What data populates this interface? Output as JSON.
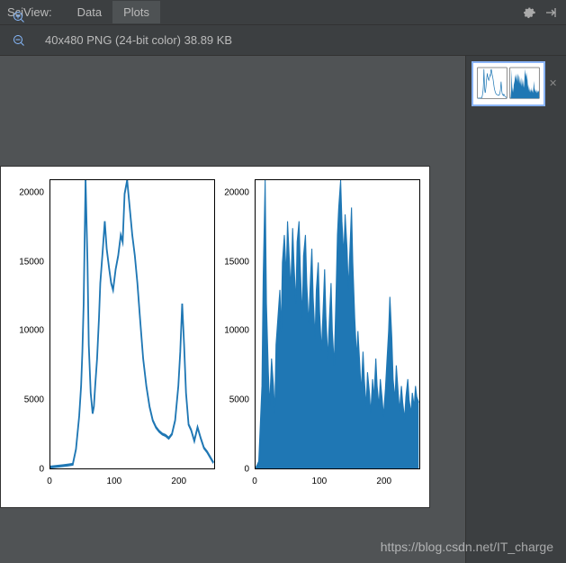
{
  "header": {
    "title": "SciView:",
    "tabs": [
      {
        "label": "Data",
        "active": false
      },
      {
        "label": "Plots",
        "active": true
      }
    ]
  },
  "toolbar": {
    "info": "40x480 PNG (24-bit color) 38.89 KB",
    "buttons": [
      {
        "name": "fit-window-icon",
        "selected": true
      },
      {
        "name": "actual-size-icon",
        "selected": false
      },
      {
        "name": "zoom-in-icon",
        "selected": false
      },
      {
        "name": "zoom-out-icon",
        "selected": false
      },
      {
        "name": "zoom-reset-icon",
        "selected": false
      },
      {
        "name": "grid-icon",
        "selected": false
      },
      {
        "name": "color-picker-icon",
        "selected": false
      }
    ]
  },
  "watermark": "https://blog.csdn.net/IT_charge",
  "chart": {
    "type": "line-subplots",
    "background_color": "#ffffff",
    "line_color": "#1f77b4",
    "fill_color": "#1f77b4",
    "axis_color": "#000000",
    "tick_fontsize": 10,
    "ylim": [
      0,
      21000
    ],
    "yticks": [
      0,
      5000,
      10000,
      15000,
      20000
    ],
    "xlim": [
      0,
      256
    ],
    "xticks": [
      0,
      100,
      200
    ],
    "left": {
      "style": "line",
      "data": [
        [
          0,
          100
        ],
        [
          10,
          150
        ],
        [
          20,
          200
        ],
        [
          28,
          250
        ],
        [
          35,
          300
        ],
        [
          40,
          1400
        ],
        [
          45,
          3800
        ],
        [
          48,
          6000
        ],
        [
          50,
          8500
        ],
        [
          52,
          12000
        ],
        [
          55,
          21000
        ],
        [
          58,
          15000
        ],
        [
          60,
          9000
        ],
        [
          63,
          5500
        ],
        [
          66,
          4000
        ],
        [
          68,
          4500
        ],
        [
          70,
          6000
        ],
        [
          73,
          8000
        ],
        [
          76,
          11000
        ],
        [
          78,
          13500
        ],
        [
          82,
          16000
        ],
        [
          85,
          18000
        ],
        [
          88,
          16000
        ],
        [
          92,
          14500
        ],
        [
          95,
          13500
        ],
        [
          98,
          13000
        ],
        [
          102,
          14500
        ],
        [
          106,
          15500
        ],
        [
          110,
          17000
        ],
        [
          113,
          16500
        ],
        [
          116,
          20000
        ],
        [
          120,
          21000
        ],
        [
          124,
          19000
        ],
        [
          128,
          17000
        ],
        [
          132,
          15500
        ],
        [
          136,
          13500
        ],
        [
          140,
          11000
        ],
        [
          145,
          8000
        ],
        [
          150,
          6000
        ],
        [
          155,
          4500
        ],
        [
          160,
          3500
        ],
        [
          165,
          3000
        ],
        [
          170,
          2700
        ],
        [
          175,
          2500
        ],
        [
          180,
          2400
        ],
        [
          185,
          2200
        ],
        [
          190,
          2500
        ],
        [
          195,
          3500
        ],
        [
          200,
          6000
        ],
        [
          203,
          8500
        ],
        [
          206,
          12000
        ],
        [
          209,
          9000
        ],
        [
          212,
          5500
        ],
        [
          216,
          3200
        ],
        [
          220,
          2800
        ],
        [
          225,
          2000
        ],
        [
          230,
          3000
        ],
        [
          235,
          2200
        ],
        [
          240,
          1500
        ],
        [
          245,
          1200
        ],
        [
          250,
          800
        ],
        [
          255,
          400
        ]
      ]
    },
    "right": {
      "style": "dense-fill",
      "data": [
        [
          0,
          0
        ],
        [
          5,
          500
        ],
        [
          10,
          6000
        ],
        [
          12,
          14000
        ],
        [
          15,
          21000
        ],
        [
          17,
          12000
        ],
        [
          20,
          7000
        ],
        [
          22,
          4500
        ],
        [
          25,
          8000
        ],
        [
          28,
          6000
        ],
        [
          30,
          4000
        ],
        [
          32,
          9000
        ],
        [
          35,
          11000
        ],
        [
          38,
          13000
        ],
        [
          40,
          10000
        ],
        [
          42,
          15000
        ],
        [
          45,
          17000
        ],
        [
          48,
          14000
        ],
        [
          50,
          18000
        ],
        [
          52,
          16000
        ],
        [
          55,
          13000
        ],
        [
          58,
          17500
        ],
        [
          60,
          15000
        ],
        [
          63,
          12000
        ],
        [
          65,
          16500
        ],
        [
          68,
          18000
        ],
        [
          70,
          14500
        ],
        [
          73,
          11000
        ],
        [
          75,
          15500
        ],
        [
          78,
          17000
        ],
        [
          80,
          13500
        ],
        [
          83,
          10500
        ],
        [
          86,
          14000
        ],
        [
          88,
          16000
        ],
        [
          90,
          12500
        ],
        [
          93,
          9500
        ],
        [
          95,
          13000
        ],
        [
          98,
          15000
        ],
        [
          100,
          11500
        ],
        [
          103,
          8500
        ],
        [
          106,
          12000
        ],
        [
          108,
          14500
        ],
        [
          110,
          11000
        ],
        [
          113,
          8000
        ],
        [
          116,
          11500
        ],
        [
          118,
          13500
        ],
        [
          120,
          10000
        ],
        [
          123,
          7500
        ],
        [
          126,
          13000
        ],
        [
          128,
          17000
        ],
        [
          130,
          19000
        ],
        [
          133,
          21000
        ],
        [
          135,
          18000
        ],
        [
          138,
          15500
        ],
        [
          140,
          18500
        ],
        [
          143,
          16000
        ],
        [
          145,
          13000
        ],
        [
          148,
          16500
        ],
        [
          150,
          19000
        ],
        [
          152,
          15000
        ],
        [
          155,
          11000
        ],
        [
          158,
          8000
        ],
        [
          160,
          10000
        ],
        [
          163,
          7500
        ],
        [
          165,
          5500
        ],
        [
          168,
          8500
        ],
        [
          170,
          6500
        ],
        [
          173,
          4500
        ],
        [
          175,
          7000
        ],
        [
          178,
          5500
        ],
        [
          180,
          4000
        ],
        [
          183,
          6500
        ],
        [
          185,
          5000
        ],
        [
          188,
          8000
        ],
        [
          190,
          6000
        ],
        [
          193,
          4500
        ],
        [
          195,
          6500
        ],
        [
          198,
          5000
        ],
        [
          200,
          3800
        ],
        [
          203,
          5800
        ],
        [
          205,
          7500
        ],
        [
          208,
          10000
        ],
        [
          210,
          12500
        ],
        [
          213,
          9500
        ],
        [
          215,
          6500
        ],
        [
          218,
          5000
        ],
        [
          220,
          7500
        ],
        [
          223,
          5500
        ],
        [
          225,
          4200
        ],
        [
          228,
          6000
        ],
        [
          230,
          4800
        ],
        [
          233,
          3600
        ],
        [
          235,
          5200
        ],
        [
          238,
          6500
        ],
        [
          240,
          5000
        ],
        [
          243,
          4000
        ],
        [
          245,
          5500
        ],
        [
          248,
          4500
        ],
        [
          250,
          6000
        ],
        [
          252,
          5200
        ],
        [
          255,
          4800
        ]
      ]
    }
  }
}
